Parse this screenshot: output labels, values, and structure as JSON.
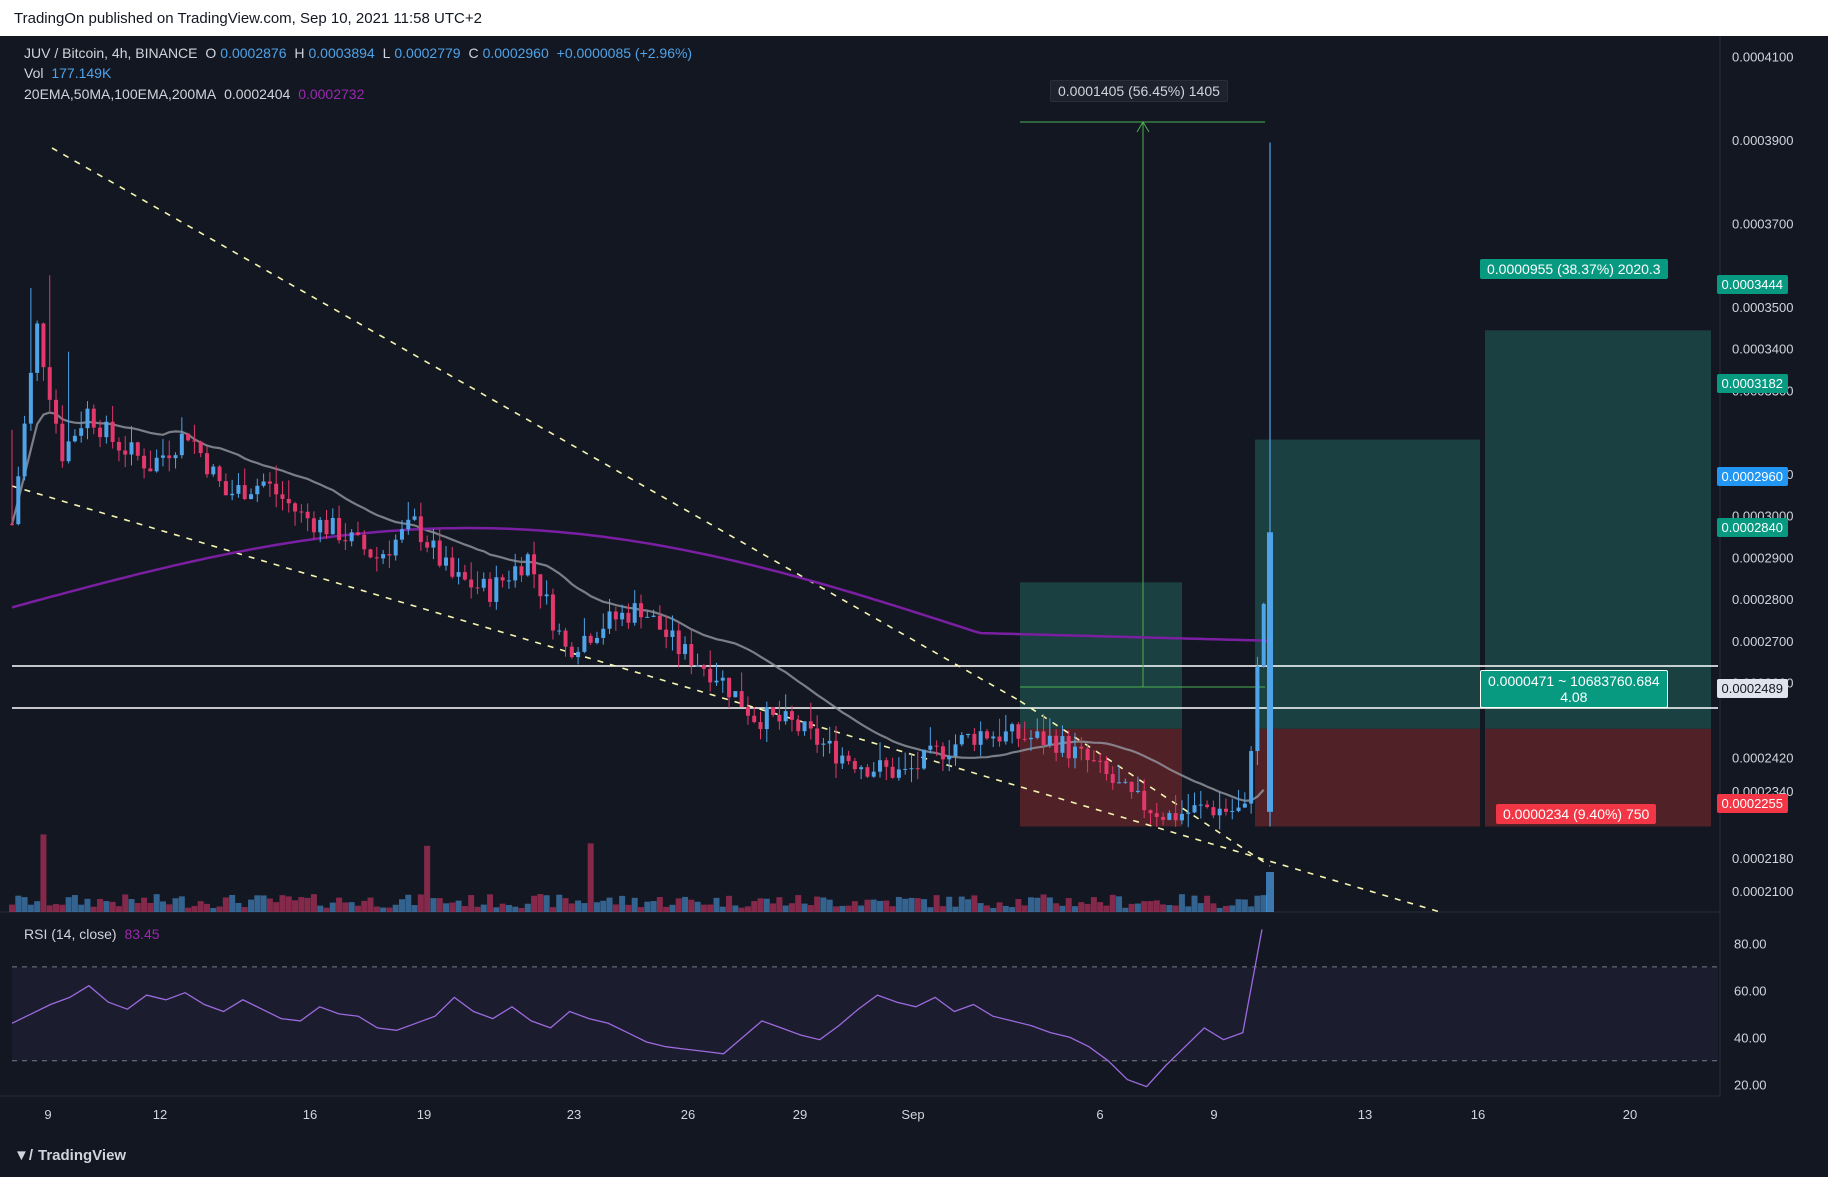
{
  "header": {
    "published": "TradingOn published on TradingView.com, Sep 10, 2021 11:58 UTC+2"
  },
  "legend": {
    "symbol": "JUV / Bitcoin, 4h, BINANCE",
    "o_label": "O",
    "o": "0.0002876",
    "h_label": "H",
    "h": "0.0003894",
    "l_label": "L",
    "l": "0.0002779",
    "c_label": "C",
    "c": "0.0002960",
    "change": "+0.0000085 (+2.96%)",
    "vol_label": "Vol",
    "vol": "177.149K",
    "ma_label": "20EMA,50MA,100EMA,200MA",
    "ma1": "0.0002404",
    "ma2": "0.0002732"
  },
  "rsi_legend": {
    "label": "RSI (14, close)",
    "value": "83.45"
  },
  "annotations": {
    "measure": "0.0001405 (56.45%) 1405",
    "target": "0.0000955 (38.37%) 2020.3",
    "entry_line1": "0.0000471 ~ 10683760.684",
    "entry_line2": "4.08",
    "stop": "0.0000234 (9.40%) 750"
  },
  "price_axis_tags": {
    "t1": "0.0003444",
    "t2": "0.0003182",
    "current": "0.0002960",
    "t3": "0.0002840",
    "entry": "0.0002489",
    "stop": "0.0002255"
  },
  "colors": {
    "background": "#131722",
    "up": "#4fa3e8",
    "down": "#e2386b",
    "ma_gray": "#9598a1",
    "ma_purple": "#7b1fa2",
    "target_zone": "#1e4b4a",
    "stop_zone": "#5c2328",
    "teal": "#089981",
    "red": "#f23645"
  },
  "footer": {
    "brand": "TradingView"
  },
  "chart_data": [
    {
      "type": "candlestick",
      "title": "JUV / Bitcoin, 4h, BINANCE",
      "x_ticks": [
        "9",
        "12",
        "16",
        "19",
        "23",
        "26",
        "29",
        "Sep",
        "6",
        "9",
        "13",
        "16",
        "20"
      ],
      "y_ticks": [
        "0.0004100",
        "0.0003900",
        "0.0003700",
        "0.0003500",
        "0.0003400",
        "0.0003300",
        "0.0003100",
        "0.0003000",
        "0.0002900",
        "0.0002800",
        "0.0002700",
        "0.0002600",
        "0.0002420",
        "0.0002340",
        "0.0002180",
        "0.0002100"
      ],
      "ylim": [
        0.000205,
        0.000413
      ],
      "close_path": [
        [
          0,
          0.000298
        ],
        [
          4,
          0.000345
        ],
        [
          8,
          0.000315
        ],
        [
          12,
          0.000325
        ],
        [
          16,
          0.000318
        ],
        [
          22,
          0.000312
        ],
        [
          28,
          0.00032
        ],
        [
          34,
          0.000305
        ],
        [
          40,
          0.000308
        ],
        [
          46,
          0.0003
        ],
        [
          52,
          0.000296
        ],
        [
          58,
          0.00029
        ],
        [
          64,
          0.000298
        ],
        [
          70,
          0.000285
        ],
        [
          76,
          0.000282
        ],
        [
          82,
          0.00029
        ],
        [
          88,
          0.000268
        ],
        [
          94,
          0.000274
        ],
        [
          100,
          0.000278
        ],
        [
          106,
          0.000268
        ],
        [
          112,
          0.000262
        ],
        [
          118,
          0.000252
        ],
        [
          124,
          0.00025
        ],
        [
          130,
          0.000244
        ],
        [
          136,
          0.00024
        ],
        [
          142,
          0.000238
        ],
        [
          148,
          0.000244
        ],
        [
          154,
          0.000248
        ],
        [
          160,
          0.000247
        ],
        [
          166,
          0.000246
        ],
        [
          172,
          0.00024
        ],
        [
          178,
          0.000232
        ],
        [
          184,
          0.000228
        ],
        [
          190,
          0.00023
        ],
        [
          196,
          0.000229
        ],
        [
          200,
          0.000296
        ]
      ],
      "annotations": [
        "0.0001405 (56.45%) 1405"
      ]
    },
    {
      "type": "line",
      "title": "RSI (14, close)",
      "y_ticks": [
        "80.00",
        "60.00",
        "40.00",
        "20.00"
      ],
      "ylim": [
        15,
        90
      ],
      "bands": [
        30,
        70
      ],
      "values": [
        46,
        50,
        54,
        57,
        62,
        55,
        52,
        58,
        56,
        59,
        54,
        51,
        56,
        52,
        48,
        47,
        53,
        50,
        49,
        44,
        43,
        46,
        49,
        57,
        51,
        48,
        53,
        47,
        44,
        51,
        48,
        46,
        42,
        38,
        36,
        35,
        34,
        33,
        40,
        47,
        44,
        41,
        39,
        45,
        52,
        58,
        55,
        53,
        57,
        51,
        54,
        49,
        47,
        45,
        42,
        40,
        36,
        30,
        22,
        19,
        28,
        36,
        44,
        39,
        42,
        86
      ]
    }
  ]
}
